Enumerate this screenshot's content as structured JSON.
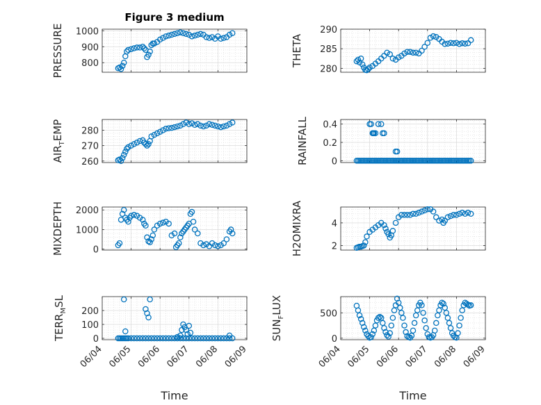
{
  "figure": {
    "title": "Figure 3 medium",
    "xlabel": "Time",
    "marker_color": "#0072BD",
    "x_ticks": [
      "06/04",
      "06/05",
      "06/06",
      "06/07",
      "06/08",
      "06/09"
    ],
    "x_range": [
      0,
      5
    ]
  },
  "chart_data": [
    {
      "type": "scatter",
      "name": "PRESSURE",
      "ylabel": {
        "main": "PRESSURE",
        "sub": "",
        "rest": ""
      },
      "ylim": [
        740,
        1010
      ],
      "yticks": [
        800,
        900,
        1000
      ],
      "grid": true,
      "x": [
        0.55,
        0.6,
        0.65,
        0.7,
        0.75,
        0.8,
        0.85,
        0.9,
        1.0,
        1.1,
        1.2,
        1.3,
        1.4,
        1.45,
        1.5,
        1.55,
        1.6,
        1.65,
        1.7,
        1.75,
        1.8,
        1.9,
        2.0,
        2.1,
        2.2,
        2.3,
        2.4,
        2.5,
        2.6,
        2.7,
        2.8,
        2.9,
        3.0,
        3.1,
        3.2,
        3.3,
        3.4,
        3.5,
        3.6,
        3.7,
        3.8,
        3.9,
        4.0,
        4.1,
        4.2,
        4.3,
        4.4,
        4.5
      ],
      "y": [
        765,
        770,
        760,
        780,
        800,
        840,
        870,
        880,
        885,
        890,
        895,
        895,
        900,
        890,
        880,
        835,
        850,
        870,
        910,
        920,
        920,
        930,
        945,
        955,
        965,
        970,
        975,
        980,
        985,
        990,
        985,
        980,
        975,
        965,
        970,
        975,
        980,
        975,
        960,
        955,
        960,
        950,
        965,
        950,
        955,
        960,
        975,
        985
      ]
    },
    {
      "type": "scatter",
      "name": "THETA",
      "ylabel": {
        "main": "THETA",
        "sub": "",
        "rest": ""
      },
      "ylim": [
        279,
        290
      ],
      "yticks": [
        280,
        285,
        290
      ],
      "grid": true,
      "x": [
        0.55,
        0.6,
        0.65,
        0.7,
        0.75,
        0.8,
        0.85,
        0.9,
        0.95,
        1.0,
        1.1,
        1.2,
        1.3,
        1.4,
        1.5,
        1.6,
        1.7,
        1.8,
        1.9,
        2.0,
        2.1,
        2.2,
        2.3,
        2.4,
        2.5,
        2.6,
        2.7,
        2.8,
        2.9,
        3.0,
        3.1,
        3.2,
        3.3,
        3.4,
        3.5,
        3.6,
        3.7,
        3.8,
        3.9,
        4.0,
        4.1,
        4.2,
        4.3,
        4.4,
        4.5
      ],
      "y": [
        281.8,
        282.2,
        281.5,
        282.5,
        281,
        280.2,
        279.6,
        279.5,
        279.8,
        280.2,
        280.6,
        281.2,
        281.8,
        282.5,
        283.2,
        284,
        283.6,
        282.5,
        282.2,
        282.8,
        283.2,
        283.8,
        284.2,
        284.2,
        284,
        284,
        283.8,
        284.5,
        285.5,
        286.5,
        287.8,
        288.2,
        288,
        287.5,
        286.8,
        286.2,
        286.3,
        286.5,
        286.4,
        286.5,
        286.2,
        286.4,
        286.3,
        286.4,
        287.2
      ]
    },
    {
      "type": "scatter",
      "name": "AIR_TEMP",
      "ylabel": {
        "main": "AIR",
        "sub": "T",
        "rest": "EMP"
      },
      "ylim": [
        259,
        287
      ],
      "yticks": [
        260,
        270,
        280
      ],
      "grid": true,
      "x": [
        0.55,
        0.6,
        0.65,
        0.7,
        0.75,
        0.8,
        0.85,
        0.9,
        1.0,
        1.1,
        1.2,
        1.3,
        1.4,
        1.45,
        1.5,
        1.55,
        1.6,
        1.65,
        1.7,
        1.8,
        1.9,
        2.0,
        2.1,
        2.2,
        2.3,
        2.4,
        2.5,
        2.6,
        2.7,
        2.8,
        2.9,
        3.0,
        3.1,
        3.2,
        3.3,
        3.4,
        3.5,
        3.6,
        3.7,
        3.8,
        3.9,
        4.0,
        4.1,
        4.2,
        4.3,
        4.4,
        4.5
      ],
      "y": [
        260.5,
        261,
        260,
        262,
        264,
        266,
        268,
        269,
        270,
        271,
        272,
        273,
        273.5,
        272,
        271,
        270,
        271,
        273,
        276,
        277,
        278,
        279,
        280,
        281,
        281.3,
        281.5,
        282,
        282.5,
        283,
        284,
        285,
        284,
        284.5,
        283.5,
        284,
        283,
        282.5,
        283,
        284,
        283.5,
        283,
        282.5,
        282,
        282.5,
        283,
        284,
        285
      ]
    },
    {
      "type": "scatter",
      "name": "RAINFALL",
      "ylabel": {
        "main": "RAINFALL",
        "sub": "",
        "rest": ""
      },
      "ylim": [
        -0.02,
        0.45
      ],
      "yticks": [
        0,
        0.2,
        0.4
      ],
      "ytick_labels": [
        "0",
        "0.2",
        "0.4"
      ],
      "grid": true,
      "x": [
        0.55,
        0.6,
        0.65,
        0.7,
        0.75,
        0.8,
        0.85,
        0.9,
        0.95,
        1.0,
        1.05,
        1.1,
        1.15,
        1.2,
        1.25,
        1.3,
        1.35,
        1.4,
        1.45,
        1.5,
        1.55,
        1.6,
        1.65,
        1.7,
        1.75,
        1.8,
        1.85,
        1.9,
        1.95,
        2.0,
        2.05,
        2.1,
        2.15,
        2.2,
        2.25,
        2.3,
        2.35,
        2.4,
        2.45,
        2.5,
        2.55,
        2.6,
        2.65,
        2.7,
        2.75,
        2.8,
        2.85,
        2.9,
        2.95,
        3.0,
        3.05,
        3.1,
        3.15,
        3.2,
        3.25,
        3.3,
        3.35,
        3.4,
        3.45,
        3.5,
        3.55,
        3.6,
        3.65,
        3.7,
        3.75,
        3.8,
        3.85,
        3.9,
        3.95,
        4.0,
        4.05,
        4.1,
        4.15,
        4.2,
        4.25,
        4.3,
        4.35,
        4.4,
        4.45,
        4.5,
        1.0,
        1.05,
        1.1,
        1.12,
        1.15,
        1.2,
        1.3,
        1.4,
        1.45,
        1.5,
        1.9,
        1.95
      ],
      "y": [
        0,
        0,
        0,
        0,
        0,
        0,
        0,
        0,
        0,
        0,
        0,
        0,
        0,
        0,
        0,
        0,
        0,
        0,
        0,
        0,
        0,
        0,
        0,
        0,
        0,
        0,
        0,
        0,
        0,
        0,
        0,
        0,
        0,
        0,
        0,
        0,
        0,
        0,
        0,
        0,
        0,
        0,
        0,
        0,
        0,
        0,
        0,
        0,
        0,
        0,
        0,
        0,
        0,
        0,
        0,
        0,
        0,
        0,
        0,
        0,
        0,
        0,
        0,
        0,
        0,
        0,
        0,
        0,
        0,
        0,
        0,
        0,
        0,
        0,
        0,
        0,
        0,
        0,
        0,
        0,
        0.4,
        0.4,
        0.3,
        0.3,
        0.3,
        0.3,
        0.4,
        0.4,
        0.3,
        0.3,
        0.1,
        0.1
      ]
    },
    {
      "type": "scatter",
      "name": "MIXDEPTH",
      "ylabel": {
        "main": "MIXDEPTH",
        "sub": "",
        "rest": ""
      },
      "ylim": [
        -50,
        2150
      ],
      "yticks": [
        0,
        1000,
        2000
      ],
      "grid": true,
      "x": [
        0.55,
        0.6,
        0.65,
        0.7,
        0.75,
        0.8,
        0.85,
        0.9,
        0.95,
        1.0,
        1.1,
        1.2,
        1.3,
        1.4,
        1.45,
        1.5,
        1.55,
        1.6,
        1.65,
        1.7,
        1.75,
        1.8,
        1.9,
        2.0,
        2.1,
        2.2,
        2.3,
        2.4,
        2.5,
        2.55,
        2.6,
        2.65,
        2.7,
        2.75,
        2.8,
        2.85,
        2.9,
        2.95,
        3.0,
        3.05,
        3.1,
        3.15,
        3.2,
        3.3,
        3.4,
        3.5,
        3.6,
        3.7,
        3.8,
        3.9,
        4.0,
        4.1,
        4.2,
        4.3,
        4.4,
        4.5,
        4.45
      ],
      "y": [
        200,
        300,
        1500,
        1800,
        2000,
        1600,
        1500,
        1400,
        1600,
        1700,
        1750,
        1700,
        1600,
        1500,
        1300,
        1200,
        600,
        400,
        350,
        500,
        700,
        1000,
        1200,
        1300,
        1350,
        1400,
        1300,
        700,
        800,
        100,
        200,
        300,
        600,
        800,
        900,
        1000,
        1100,
        1200,
        1300,
        1800,
        1900,
        1400,
        1000,
        800,
        300,
        200,
        250,
        150,
        300,
        200,
        150,
        200,
        300,
        500,
        900,
        800,
        1000
      ]
    },
    {
      "type": "scatter",
      "name": "H2OMIXRA",
      "ylabel": {
        "main": "H2OMIXRA",
        "sub": "",
        "rest": ""
      },
      "ylim": [
        1.6,
        5.4
      ],
      "yticks": [
        2,
        4
      ],
      "grid": true,
      "x": [
        0.55,
        0.6,
        0.65,
        0.7,
        0.75,
        0.8,
        0.85,
        0.9,
        1.0,
        1.1,
        1.2,
        1.3,
        1.4,
        1.5,
        1.55,
        1.6,
        1.65,
        1.7,
        1.75,
        1.8,
        1.9,
        2.0,
        2.1,
        2.2,
        2.3,
        2.4,
        2.5,
        2.6,
        2.7,
        2.8,
        2.9,
        3.0,
        3.1,
        3.2,
        3.3,
        3.4,
        3.5,
        3.55,
        3.6,
        3.7,
        3.8,
        3.9,
        4.0,
        4.1,
        4.2,
        4.3,
        4.4,
        4.5
      ],
      "y": [
        1.8,
        1.85,
        1.9,
        1.9,
        1.95,
        2.0,
        2.3,
        2.8,
        3.2,
        3.4,
        3.6,
        3.8,
        4.0,
        3.8,
        3.5,
        3.2,
        3.0,
        2.7,
        2.9,
        3.3,
        4.0,
        4.5,
        4.7,
        4.7,
        4.7,
        4.7,
        4.8,
        4.8,
        4.9,
        5.0,
        5.1,
        5.2,
        5.2,
        5.0,
        4.5,
        4.2,
        4.3,
        4.0,
        4.2,
        4.5,
        4.6,
        4.7,
        4.7,
        4.8,
        4.9,
        4.8,
        4.9,
        4.8
      ]
    },
    {
      "type": "scatter",
      "name": "TERR_MSL",
      "ylabel": {
        "main": "TERR",
        "sub": "M",
        "rest": "SL"
      },
      "ylim": [
        -10,
        300
      ],
      "yticks": [
        0,
        100,
        200
      ],
      "grid": true,
      "x": [
        0.55,
        0.6,
        0.65,
        0.7,
        0.75,
        0.8,
        0.85,
        0.9,
        1.0,
        1.1,
        1.2,
        1.3,
        1.4,
        1.5,
        1.6,
        1.7,
        1.8,
        1.9,
        2.0,
        2.1,
        2.2,
        2.3,
        2.4,
        2.5,
        2.6,
        2.7,
        2.8,
        2.9,
        3.0,
        3.1,
        3.2,
        3.3,
        3.4,
        3.5,
        3.6,
        3.7,
        3.8,
        3.9,
        4.0,
        4.1,
        4.2,
        4.3,
        4.4,
        4.5,
        0.75,
        0.8,
        1.5,
        1.55,
        1.6,
        1.65,
        2.7,
        2.75,
        2.8,
        2.85,
        2.9,
        2.95,
        3.0,
        3.05,
        2.6,
        4.4
      ],
      "y": [
        0,
        0,
        0,
        0,
        0,
        0,
        0,
        0,
        0,
        0,
        0,
        0,
        0,
        0,
        0,
        0,
        0,
        0,
        0,
        0,
        0,
        0,
        0,
        0,
        0,
        0,
        0,
        0,
        0,
        0,
        0,
        0,
        0,
        0,
        0,
        0,
        0,
        0,
        0,
        0,
        0,
        0,
        0,
        0,
        280,
        50,
        210,
        180,
        150,
        280,
        20,
        60,
        100,
        80,
        60,
        30,
        90,
        40,
        10,
        20
      ]
    },
    {
      "type": "scatter",
      "name": "SUN_FLUX",
      "ylabel": {
        "main": "SUN",
        "sub": "F",
        "rest": "LUX"
      },
      "ylim": [
        -30,
        820
      ],
      "yticks": [
        0,
        500
      ],
      "grid": true,
      "x": [
        0.55,
        0.6,
        0.65,
        0.7,
        0.75,
        0.8,
        0.85,
        0.9,
        0.95,
        1.0,
        1.05,
        1.1,
        1.15,
        1.2,
        1.25,
        1.3,
        1.35,
        1.4,
        1.45,
        1.5,
        1.55,
        1.6,
        1.65,
        1.7,
        1.75,
        1.8,
        1.85,
        1.9,
        1.95,
        2.0,
        2.05,
        2.1,
        2.15,
        2.2,
        2.25,
        2.3,
        2.35,
        2.4,
        2.45,
        2.5,
        2.55,
        2.6,
        2.65,
        2.7,
        2.75,
        2.8,
        2.85,
        2.9,
        2.95,
        3.0,
        3.05,
        3.1,
        3.15,
        3.2,
        3.25,
        3.3,
        3.35,
        3.4,
        3.45,
        3.5,
        3.55,
        3.6,
        3.65,
        3.7,
        3.75,
        3.8,
        3.85,
        3.9,
        3.95,
        4.0,
        4.05,
        4.1,
        4.15,
        4.2,
        4.25,
        4.3,
        4.35,
        4.4,
        4.45,
        4.5
      ],
      "y": [
        640,
        550,
        450,
        380,
        300,
        220,
        150,
        80,
        40,
        10,
        20,
        80,
        150,
        250,
        350,
        400,
        420,
        400,
        300,
        200,
        120,
        60,
        30,
        100,
        250,
        400,
        550,
        650,
        780,
        700,
        600,
        500,
        400,
        250,
        120,
        40,
        20,
        10,
        50,
        150,
        300,
        450,
        550,
        650,
        700,
        650,
        500,
        350,
        200,
        80,
        20,
        10,
        20,
        60,
        150,
        300,
        450,
        550,
        650,
        700,
        680,
        600,
        500,
        400,
        300,
        200,
        100,
        50,
        20,
        10,
        100,
        250,
        400,
        550,
        650,
        700,
        680,
        660,
        640,
        650
      ]
    }
  ]
}
